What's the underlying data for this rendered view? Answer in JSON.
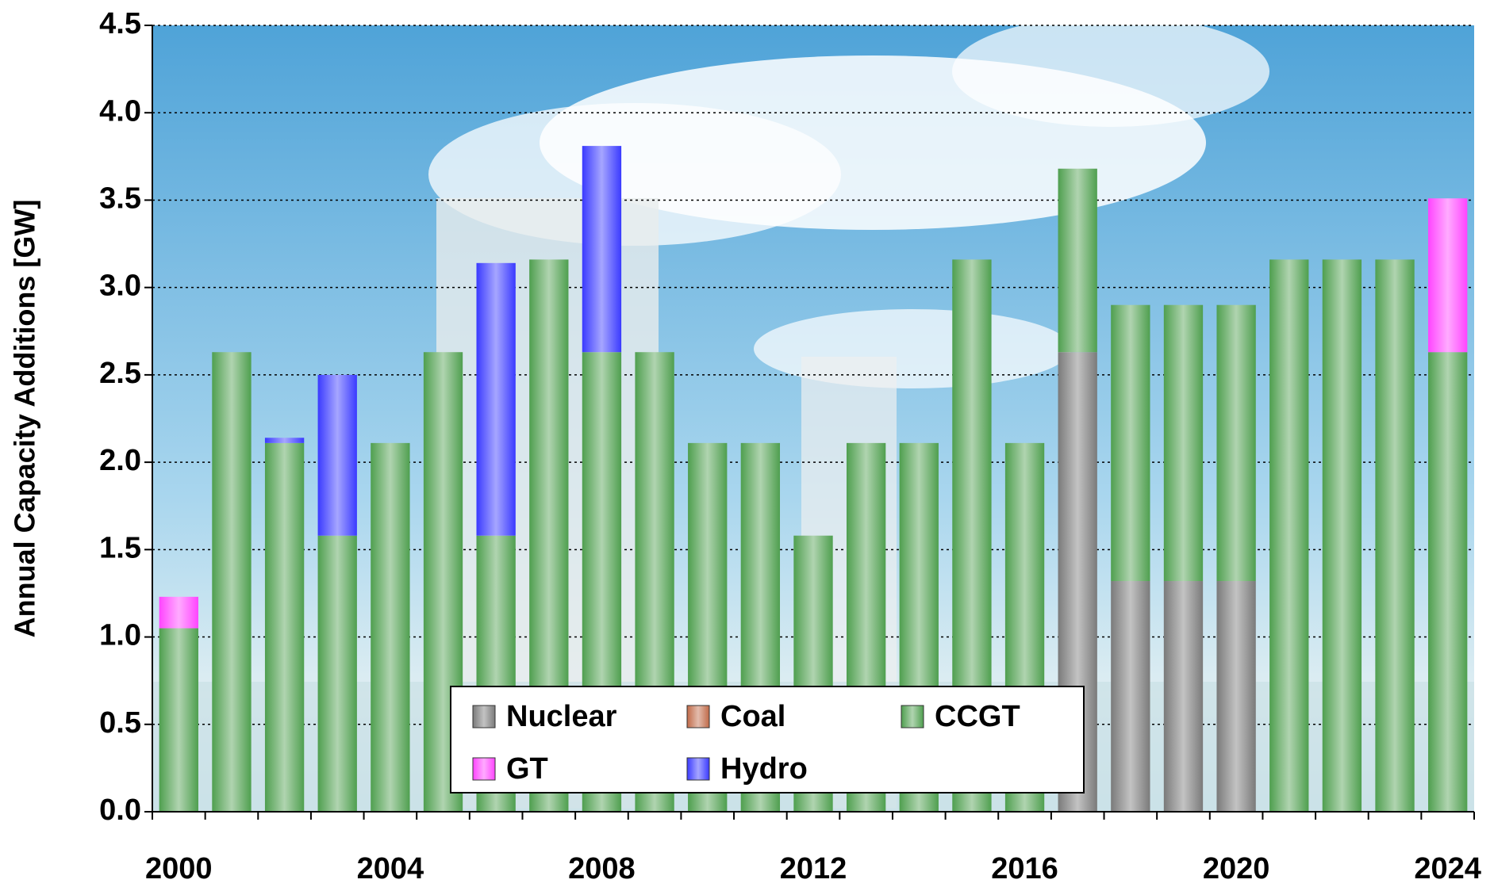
{
  "chart_data": {
    "type": "stacked-bar",
    "y_label": "Annual Capacity Additions [GW]",
    "categories": [
      "2000",
      null,
      null,
      null,
      "2004",
      null,
      null,
      null,
      "2008",
      null,
      null,
      null,
      "2012",
      null,
      null,
      null,
      "2016",
      null,
      null,
      null,
      "2020",
      null,
      null,
      null,
      "2024"
    ],
    "series": [
      {
        "name": "Nuclear",
        "color": "#7a7a7a",
        "values": [
          0,
          0,
          0,
          0,
          0,
          0,
          0,
          0,
          0,
          0,
          0,
          0,
          0,
          0,
          0,
          0,
          0,
          2.63,
          1.32,
          1.32,
          1.32,
          0,
          0,
          0,
          0
        ]
      },
      {
        "name": "Coal",
        "color": "#c06a48",
        "values": [
          0,
          0,
          0,
          0,
          0,
          0,
          0,
          0,
          0,
          0,
          0,
          0,
          0,
          0,
          0,
          0,
          0,
          0,
          0,
          0,
          0,
          0,
          0,
          0,
          0
        ]
      },
      {
        "name": "CCGT",
        "color": "#4f9f4f",
        "values": [
          1.05,
          2.63,
          2.11,
          1.58,
          2.11,
          2.63,
          1.58,
          3.16,
          2.63,
          2.63,
          2.11,
          2.11,
          1.58,
          2.11,
          2.11,
          3.16,
          2.11,
          1.05,
          1.58,
          1.58,
          1.58,
          3.16,
          3.16,
          3.16,
          2.63
        ]
      },
      {
        "name": "GT",
        "color": "#ff44ff",
        "values": [
          0.18,
          0,
          0,
          0,
          0,
          0,
          0,
          0,
          0,
          0,
          0,
          0,
          0,
          0,
          0,
          0,
          0,
          0,
          0,
          0,
          0,
          0,
          0,
          0,
          0.88
        ]
      },
      {
        "name": "Hydro",
        "color": "#3a3aff",
        "values": [
          0,
          0,
          0.03,
          0.92,
          0,
          0,
          1.56,
          0,
          1.18,
          0,
          0,
          0,
          0,
          0,
          0,
          0,
          0,
          0,
          0,
          0,
          0,
          0,
          0,
          0,
          0
        ]
      }
    ],
    "legend_order": [
      0,
      1,
      2,
      3,
      4
    ],
    "ylim": [
      0,
      4.5
    ],
    "yticks": [
      {
        "value": 0,
        "label": "0.0"
      },
      0.5,
      {
        "value": 1,
        "label": "1.0"
      },
      1.5,
      {
        "value": 2,
        "label": "2.0"
      },
      2.5,
      {
        "value": 3,
        "label": "3.0"
      },
      3.5,
      {
        "value": 4,
        "label": "4.0"
      },
      4.5
    ],
    "grid": true
  }
}
